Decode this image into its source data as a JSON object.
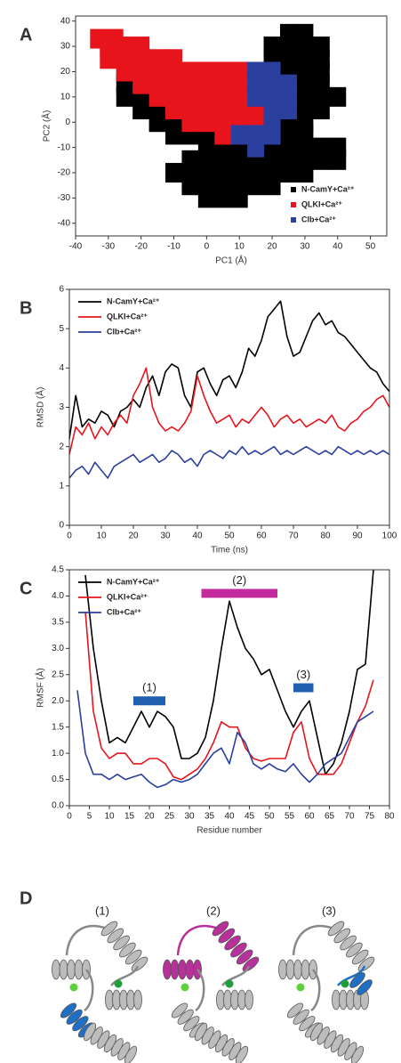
{
  "chart_data": [
    {
      "type": "scatter",
      "panel": "A",
      "xlabel": "PC1 (Å)",
      "ylabel": "PC2 (Å)",
      "xlim": [
        -40,
        55
      ],
      "xticks": [
        -40,
        -30,
        -20,
        -10,
        0,
        10,
        20,
        30,
        40,
        50
      ],
      "ylim": [
        -45,
        42
      ],
      "yticks": [
        -40,
        -30,
        -20,
        -10,
        0,
        10,
        20,
        30,
        40
      ],
      "legend": "lower right",
      "series": [
        {
          "name": "N-CamY+Ca²⁺",
          "color": "#000000",
          "x": [
            25,
            30,
            20,
            25,
            30,
            35,
            20,
            25,
            30,
            35,
            -25,
            -20,
            20,
            25,
            30,
            35,
            -25,
            25,
            30,
            35,
            -25,
            -20,
            25,
            30,
            35,
            40,
            -20,
            -15,
            25,
            30,
            35,
            -15,
            -10,
            20,
            25,
            30,
            -10,
            -5,
            0,
            5,
            10,
            15,
            20,
            25,
            30,
            0,
            5,
            10,
            15,
            20,
            25,
            30,
            35,
            40,
            -5,
            0,
            5,
            10,
            15,
            20,
            25,
            30,
            35,
            40,
            -10,
            -5,
            0,
            5,
            10,
            15,
            20,
            25,
            30,
            -5,
            0,
            5,
            10,
            15,
            20,
            0,
            5,
            10
          ],
          "values": [
            35,
            35,
            30,
            30,
            30,
            30,
            25,
            25,
            25,
            25,
            20,
            20,
            20,
            20,
            20,
            20,
            15,
            15,
            15,
            15,
            10,
            10,
            10,
            10,
            10,
            10,
            5,
            5,
            5,
            5,
            5,
            0,
            0,
            0,
            0,
            0,
            -5,
            -5,
            -5,
            -5,
            -5,
            -5,
            -5,
            -5,
            -5,
            -10,
            -10,
            -10,
            -10,
            -10,
            -10,
            -10,
            -10,
            -10,
            -15,
            -15,
            -15,
            -15,
            -15,
            -15,
            -15,
            -15,
            -15,
            -15,
            -20,
            -20,
            -20,
            -20,
            -20,
            -20,
            -20,
            -20,
            -20,
            -25,
            -25,
            -25,
            -25,
            -25,
            -25,
            -30,
            -30,
            -30
          ]
        },
        {
          "name": "QLKI+Ca²⁺",
          "color": "#e8141c",
          "x": [
            -33,
            -28,
            -30,
            -25,
            -20,
            -30,
            -25,
            -20,
            -15,
            -10,
            -25,
            -20,
            -15,
            -10,
            -5,
            0,
            5,
            10,
            -20,
            -15,
            -10,
            -5,
            0,
            5,
            10,
            -15,
            -10,
            -5,
            0,
            5,
            10,
            15,
            -10,
            -5,
            0,
            5,
            10,
            15,
            -5,
            0,
            5,
            10,
            15,
            5,
            10
          ],
          "values": [
            33,
            33,
            30,
            30,
            30,
            25,
            25,
            25,
            25,
            25,
            20,
            20,
            20,
            20,
            20,
            20,
            20,
            20,
            15,
            15,
            15,
            15,
            15,
            15,
            15,
            10,
            10,
            10,
            10,
            10,
            10,
            10,
            5,
            5,
            5,
            5,
            5,
            5,
            0,
            0,
            0,
            0,
            0,
            -5,
            -5
          ]
        },
        {
          "name": "Clb+Ca²⁺",
          "color": "#2a3f9e",
          "x": [
            15,
            20,
            15,
            20,
            25,
            15,
            20,
            25,
            20,
            25,
            20,
            10,
            15,
            20,
            15
          ],
          "values": [
            20,
            20,
            15,
            15,
            15,
            10,
            10,
            10,
            5,
            5,
            0,
            -5,
            -5,
            -5,
            -10
          ]
        }
      ]
    },
    {
      "type": "line",
      "panel": "B",
      "xlabel": "Time (ns)",
      "ylabel": "RMSD (Å)",
      "xlim": [
        0,
        100
      ],
      "xticks": [
        0,
        10,
        20,
        30,
        40,
        50,
        60,
        70,
        80,
        90,
        100
      ],
      "ylim": [
        0,
        6
      ],
      "yticks": [
        0,
        1,
        2,
        3,
        4,
        5,
        6
      ],
      "legend": "upper left",
      "x": [
        0,
        2,
        4,
        6,
        8,
        10,
        12,
        14,
        16,
        18,
        20,
        22,
        24,
        26,
        28,
        30,
        32,
        34,
        36,
        38,
        40,
        42,
        44,
        46,
        48,
        50,
        52,
        54,
        56,
        58,
        60,
        62,
        64,
        66,
        68,
        70,
        72,
        74,
        76,
        78,
        80,
        82,
        84,
        86,
        88,
        90,
        92,
        94,
        96,
        98,
        100
      ],
      "series": [
        {
          "name": "N-CamY+Ca²⁺",
          "color": "#000000",
          "values": [
            2.2,
            3.3,
            2.5,
            2.7,
            2.6,
            2.9,
            2.8,
            2.5,
            2.9,
            3.0,
            3.2,
            3.0,
            3.5,
            3.8,
            3.3,
            3.9,
            4.1,
            4.0,
            3.3,
            3.0,
            3.9,
            4.0,
            3.6,
            3.3,
            3.7,
            3.8,
            3.5,
            3.9,
            4.5,
            4.3,
            4.7,
            5.3,
            5.5,
            5.7,
            4.8,
            4.3,
            4.4,
            4.8,
            5.2,
            5.4,
            5.1,
            5.2,
            4.9,
            4.8,
            4.6,
            4.4,
            4.2,
            4.0,
            3.9,
            3.6,
            3.4
          ]
        },
        {
          "name": "QLKI+Ca²⁺",
          "color": "#e8141c",
          "values": [
            1.8,
            2.5,
            2.3,
            2.6,
            2.2,
            2.5,
            2.3,
            2.6,
            2.8,
            2.6,
            3.3,
            3.6,
            4.0,
            3.0,
            2.6,
            2.4,
            2.5,
            2.4,
            2.6,
            2.9,
            3.8,
            3.3,
            2.9,
            2.6,
            2.7,
            2.8,
            2.5,
            2.7,
            2.6,
            2.8,
            3.0,
            2.8,
            2.5,
            2.7,
            2.8,
            2.6,
            2.7,
            2.5,
            2.6,
            2.7,
            2.6,
            2.8,
            2.5,
            2.4,
            2.6,
            2.7,
            2.9,
            3.0,
            3.2,
            3.3,
            3.0
          ]
        },
        {
          "name": "Clb+Ca²⁺",
          "color": "#2a3f9e",
          "values": [
            1.2,
            1.4,
            1.5,
            1.3,
            1.6,
            1.4,
            1.2,
            1.5,
            1.6,
            1.7,
            1.8,
            1.6,
            1.7,
            1.8,
            1.6,
            1.7,
            1.9,
            1.8,
            1.6,
            1.7,
            1.5,
            1.8,
            1.9,
            1.8,
            1.7,
            1.9,
            1.8,
            2.0,
            1.8,
            1.9,
            1.8,
            1.9,
            2.0,
            1.8,
            1.9,
            1.8,
            1.9,
            2.0,
            1.9,
            1.8,
            1.9,
            1.8,
            2.0,
            1.9,
            1.8,
            1.9,
            1.8,
            1.9,
            1.8,
            1.9,
            1.8
          ]
        }
      ]
    },
    {
      "type": "line",
      "panel": "C",
      "xlabel": "Residue number",
      "ylabel": "RMSF (Å)",
      "xlim": [
        0,
        80
      ],
      "xticks": [
        0,
        5,
        10,
        15,
        20,
        25,
        30,
        35,
        40,
        45,
        50,
        55,
        60,
        65,
        70,
        75,
        80
      ],
      "ylim": [
        0,
        4.5
      ],
      "yticks": [
        {
          "value": 0,
          "label": "0.0"
        },
        0.5,
        {
          "value": 1,
          "label": "1.0"
        },
        1.5,
        {
          "value": 2,
          "label": "2.0"
        },
        2.5,
        {
          "value": 3,
          "label": "3.0"
        },
        3.5,
        {
          "value": 4,
          "label": "4.0"
        },
        4.5
      ],
      "legend": "upper left",
      "x": [
        2,
        4,
        6,
        8,
        10,
        12,
        14,
        16,
        18,
        20,
        22,
        24,
        26,
        28,
        30,
        32,
        34,
        36,
        38,
        40,
        42,
        44,
        46,
        48,
        50,
        52,
        54,
        56,
        58,
        60,
        62,
        64,
        66,
        68,
        70,
        72,
        74,
        76
      ],
      "series": [
        {
          "name": "N-CamY+Ca²⁺",
          "color": "#000000",
          "values": [
            null,
            4.4,
            3.0,
            2.0,
            1.2,
            1.3,
            1.2,
            1.5,
            1.8,
            1.5,
            1.8,
            1.7,
            1.5,
            0.9,
            0.9,
            1.0,
            1.3,
            2.0,
            3.0,
            3.9,
            3.4,
            3.0,
            2.8,
            2.5,
            2.6,
            2.2,
            1.8,
            1.5,
            1.8,
            2.0,
            1.3,
            0.6,
            0.8,
            1.2,
            1.8,
            2.6,
            2.7,
            4.5
          ]
        },
        {
          "name": "QLKI+Ca²⁺",
          "color": "#e8141c",
          "values": [
            null,
            3.7,
            1.8,
            1.1,
            0.9,
            1.0,
            1.0,
            0.8,
            0.8,
            0.9,
            0.9,
            0.8,
            0.55,
            0.5,
            0.6,
            0.7,
            0.9,
            1.2,
            1.6,
            1.5,
            1.5,
            1.1,
            0.9,
            0.85,
            0.9,
            0.9,
            0.9,
            1.4,
            1.6,
            0.9,
            0.6,
            0.6,
            0.6,
            0.8,
            1.2,
            1.6,
            1.9,
            2.4
          ]
        },
        {
          "name": "Clb+Ca²⁺",
          "color": "#2a3f9e",
          "values": [
            2.2,
            1.0,
            0.6,
            0.6,
            0.5,
            0.6,
            0.5,
            0.55,
            0.6,
            0.45,
            0.35,
            0.4,
            0.5,
            0.45,
            0.5,
            0.6,
            0.8,
            1.0,
            1.1,
            0.8,
            1.4,
            1.2,
            0.8,
            0.7,
            0.8,
            0.7,
            0.65,
            0.8,
            0.6,
            0.45,
            0.6,
            0.8,
            0.9,
            1.0,
            1.3,
            1.6,
            1.7,
            1.8
          ]
        }
      ],
      "annotations": [
        {
          "label": "(1)",
          "x": [
            16,
            24
          ],
          "y": 2.0,
          "color": "#1f5fb0"
        },
        {
          "label": "(2)",
          "x": [
            33,
            52
          ],
          "y": 4.05,
          "color": "#c42a9e"
        },
        {
          "label": "(3)",
          "x": [
            56,
            61
          ],
          "y": 2.25,
          "color": "#1f5fb0"
        }
      ]
    }
  ],
  "structures": {
    "panel": "D",
    "labels": [
      "(1)",
      "(2)",
      "(3)"
    ]
  }
}
